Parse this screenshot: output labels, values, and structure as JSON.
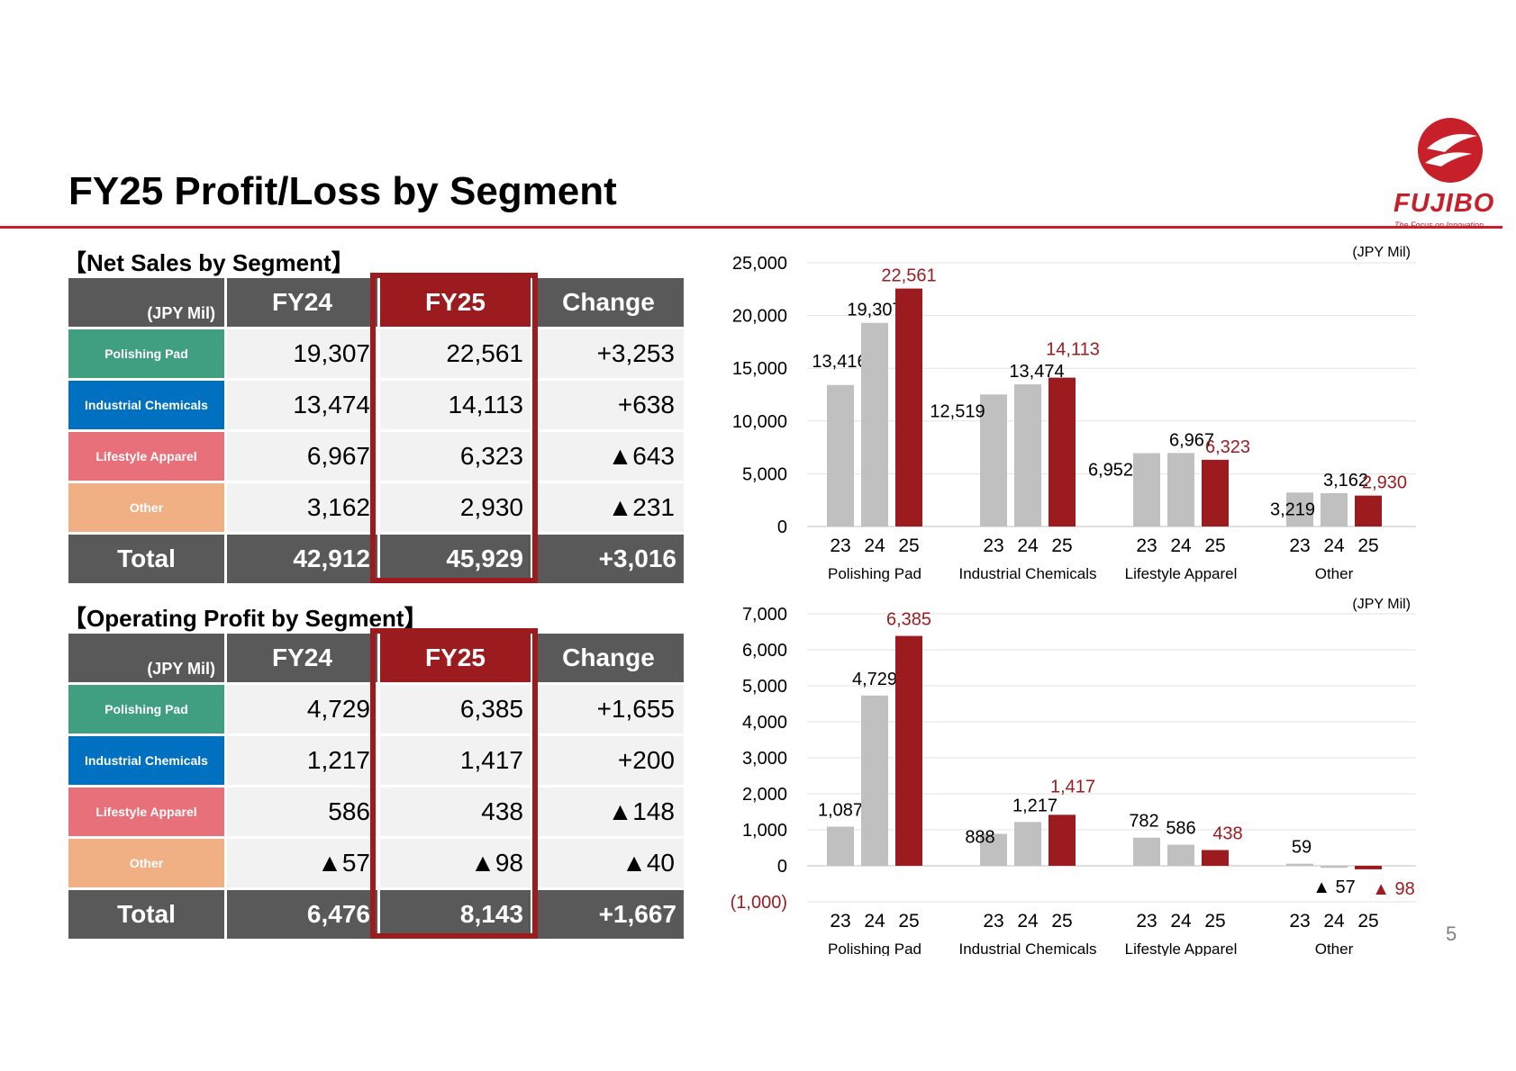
{
  "page": {
    "title": "FY25 Profit/Loss by Segment",
    "page_number": "5",
    "logo": {
      "name": "FUJIBO",
      "tagline": "The Focus on Innovation"
    }
  },
  "colors": {
    "accent_red": "#9b1b1f",
    "gray_bar": "#c0c0c0",
    "header_gray": "#595959",
    "polishing_pad": "#3f9f80",
    "industrial_chemicals": "#0070c0",
    "lifestyle_apparel": "#e8707a",
    "other": "#f0b084"
  },
  "net_sales_table": {
    "section_title": "【Net Sales by Segment】",
    "unit": "(JPY Mil)",
    "headers": [
      "FY24",
      "FY25",
      "Change"
    ],
    "rows": [
      {
        "segment": "Polishing Pad",
        "fy24": "19,307",
        "fy25": "22,561",
        "change": "+3,253"
      },
      {
        "segment": "Industrial Chemicals",
        "fy24": "13,474",
        "fy25": "14,113",
        "change": "+638"
      },
      {
        "segment": "Lifestyle Apparel",
        "fy24": "6,967",
        "fy25": "6,323",
        "change": "▲643"
      },
      {
        "segment": "Other",
        "fy24": "3,162",
        "fy25": "2,930",
        "change": "▲231"
      }
    ],
    "total": {
      "label": "Total",
      "fy24": "42,912",
      "fy25": "45,929",
      "change": "+3,016"
    }
  },
  "op_profit_table": {
    "section_title": "【Operating Profit by Segment】",
    "unit": "(JPY Mil)",
    "headers": [
      "FY24",
      "FY25",
      "Change"
    ],
    "rows": [
      {
        "segment": "Polishing Pad",
        "fy24": "4,729",
        "fy25": "6,385",
        "change": "+1,655"
      },
      {
        "segment": "Industrial Chemicals",
        "fy24": "1,217",
        "fy25": "1,417",
        "change": "+200"
      },
      {
        "segment": "Lifestyle Apparel",
        "fy24": "586",
        "fy25": "438",
        "change": "▲148"
      },
      {
        "segment": "Other",
        "fy24": "▲57",
        "fy25": "▲98",
        "change": "▲40"
      }
    ],
    "total": {
      "label": "Total",
      "fy24": "6,476",
      "fy25": "8,143",
      "change": "+1,667"
    }
  },
  "chart_data": [
    {
      "type": "bar",
      "unit_label": "(JPY Mil)",
      "ylim": [
        0,
        25000
      ],
      "yticks": [
        "0",
        "5,000",
        "10,000",
        "15,000",
        "20,000",
        "25,000"
      ],
      "grid": true,
      "year_labels": [
        "23",
        "24",
        "25"
      ],
      "groups": [
        {
          "category": "Polishing Pad",
          "values": [
            13416,
            19307,
            22561
          ],
          "labels": [
            "13,416",
            "19,307",
            "22,561"
          ]
        },
        {
          "category": "Industrial Chemicals",
          "values": [
            12519,
            13474,
            14113
          ],
          "labels": [
            "12,519",
            "13,474",
            "14,113"
          ]
        },
        {
          "category": "Lifestyle Apparel",
          "values": [
            6952,
            6967,
            6323
          ],
          "labels": [
            "6,952",
            "6,967",
            "6,323"
          ]
        },
        {
          "category": "Other",
          "values": [
            3219,
            3162,
            2930
          ],
          "labels": [
            "3,219",
            "3,162",
            "2,930"
          ]
        }
      ]
    },
    {
      "type": "bar",
      "unit_label": "(JPY Mil)",
      "ylim": [
        -1000,
        7000
      ],
      "yticks": [
        "(1,000)",
        "0",
        "1,000",
        "2,000",
        "3,000",
        "4,000",
        "5,000",
        "6,000",
        "7,000"
      ],
      "grid": true,
      "year_labels": [
        "23",
        "24",
        "25"
      ],
      "groups": [
        {
          "category": "Polishing Pad",
          "values": [
            1087,
            4729,
            6385
          ],
          "labels": [
            "1,087",
            "4,729",
            "6,385"
          ]
        },
        {
          "category": "Industrial Chemicals",
          "values": [
            888,
            1217,
            1417
          ],
          "labels": [
            "888",
            "1,217",
            "1,417"
          ]
        },
        {
          "category": "Lifestyle Apparel",
          "values": [
            782,
            586,
            438
          ],
          "labels": [
            "782",
            "586",
            "438"
          ]
        },
        {
          "category": "Other",
          "values": [
            59,
            -57,
            -98
          ],
          "labels": [
            "59",
            "▲ 57",
            "▲ 98"
          ]
        }
      ]
    }
  ]
}
